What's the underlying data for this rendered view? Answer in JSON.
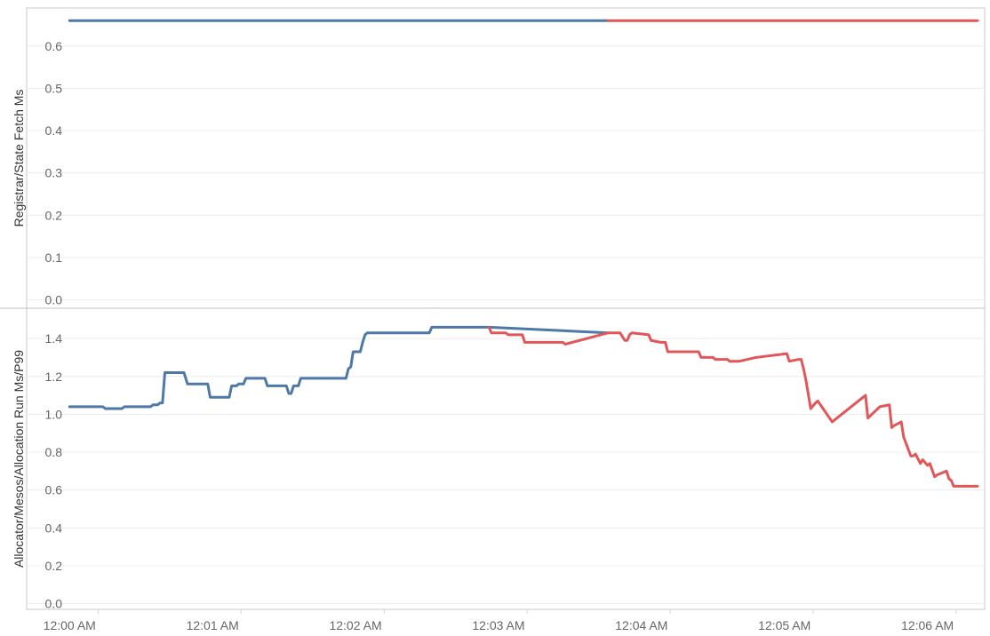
{
  "chart_data": {
    "type": "line",
    "x_axis": {
      "tick_labels": [
        "12:00 AM",
        "12:01 AM",
        "12:02 AM",
        "12:03 AM",
        "12:04 AM",
        "12:05 AM",
        "12:06 AM"
      ],
      "tick_values_seconds": [
        0,
        60,
        120,
        180,
        240,
        300,
        360
      ],
      "range_seconds": [
        -18,
        384
      ]
    },
    "colors": {
      "blue": "#4e79a7",
      "red": "#e15759"
    },
    "panels": [
      {
        "name": "registrar-state-fetch",
        "ylabel": "Registrar/State Fetch Ms",
        "ylim": [
          -0.02,
          0.69
        ],
        "yticks": [
          0.0,
          0.1,
          0.2,
          0.3,
          0.4,
          0.5,
          0.6
        ],
        "ytick_labels": [
          "0.0",
          "0.1",
          "0.2",
          "0.3",
          "0.4",
          "0.5",
          "0.6"
        ],
        "series": [
          {
            "name": "series-blue",
            "color": "#4e79a7",
            "x": [
              0,
              226
            ],
            "y": [
              0.66,
              0.66
            ]
          },
          {
            "name": "series-red",
            "color": "#e15759",
            "x": [
              226,
              381
            ],
            "y": [
              0.66,
              0.66
            ]
          }
        ]
      },
      {
        "name": "allocator-run-p99",
        "ylabel": "Allocator/Mesos/Allocation Run Ms/P99",
        "ylim": [
          -0.03,
          1.56
        ],
        "yticks": [
          0.0,
          0.2,
          0.4,
          0.6,
          0.8,
          1.0,
          1.2,
          1.4
        ],
        "ytick_labels": [
          "0.0",
          "0.2",
          "0.4",
          "0.6",
          "0.8",
          "1.0",
          "1.2",
          "1.4"
        ],
        "series": [
          {
            "name": "series-blue",
            "color": "#4e79a7",
            "x": [
              0,
              14,
              15,
              22,
              23,
              34,
              35,
              37,
              38,
              39,
              40,
              48,
              49,
              49.5,
              50,
              58,
              59,
              67,
              68,
              70,
              71,
              73,
              74,
              82,
              83,
              91,
              92,
              93,
              94,
              96,
              97,
              116,
              117,
              118,
              119,
              122,
              123,
              124,
              125,
              151,
              152,
              176,
              226
            ],
            "y": [
              1.04,
              1.04,
              1.03,
              1.03,
              1.04,
              1.04,
              1.05,
              1.05,
              1.06,
              1.06,
              1.22,
              1.22,
              1.18,
              1.16,
              1.16,
              1.16,
              1.09,
              1.09,
              1.15,
              1.15,
              1.16,
              1.16,
              1.19,
              1.19,
              1.15,
              1.15,
              1.11,
              1.11,
              1.15,
              1.15,
              1.19,
              1.19,
              1.24,
              1.25,
              1.33,
              1.33,
              1.38,
              1.42,
              1.43,
              1.43,
              1.46,
              1.46,
              1.43
            ]
          },
          {
            "name": "series-red",
            "color": "#e15759",
            "x": [
              176,
              177,
              183,
              184,
              190,
              191,
              207,
              208,
              226,
              231,
              232,
              233,
              234,
              235,
              236,
              243,
              244,
              248,
              250,
              251,
              264,
              265,
              270,
              271,
              276,
              277,
              281,
              288,
              301,
              302,
              306,
              307,
              308,
              309,
              311,
              313,
              314,
              320,
              334,
              335,
              340,
              344,
              345,
              346,
              349,
              350,
              353,
              354,
              355,
              357,
              358,
              360,
              361,
              363,
              364,
              368,
              369,
              370,
              371,
              373,
              381
            ],
            "y": [
              1.46,
              1.43,
              1.43,
              1.42,
              1.42,
              1.38,
              1.38,
              1.37,
              1.43,
              1.43,
              1.41,
              1.39,
              1.39,
              1.42,
              1.43,
              1.42,
              1.39,
              1.38,
              1.38,
              1.33,
              1.33,
              1.3,
              1.3,
              1.29,
              1.29,
              1.28,
              1.28,
              1.3,
              1.32,
              1.28,
              1.29,
              1.29,
              1.24,
              1.18,
              1.03,
              1.06,
              1.07,
              0.96,
              1.1,
              0.98,
              1.04,
              1.05,
              0.93,
              0.94,
              0.96,
              0.88,
              0.78,
              0.78,
              0.79,
              0.74,
              0.76,
              0.73,
              0.74,
              0.67,
              0.68,
              0.7,
              0.66,
              0.65,
              0.62,
              0.62,
              0.62
            ]
          }
        ]
      }
    ]
  }
}
